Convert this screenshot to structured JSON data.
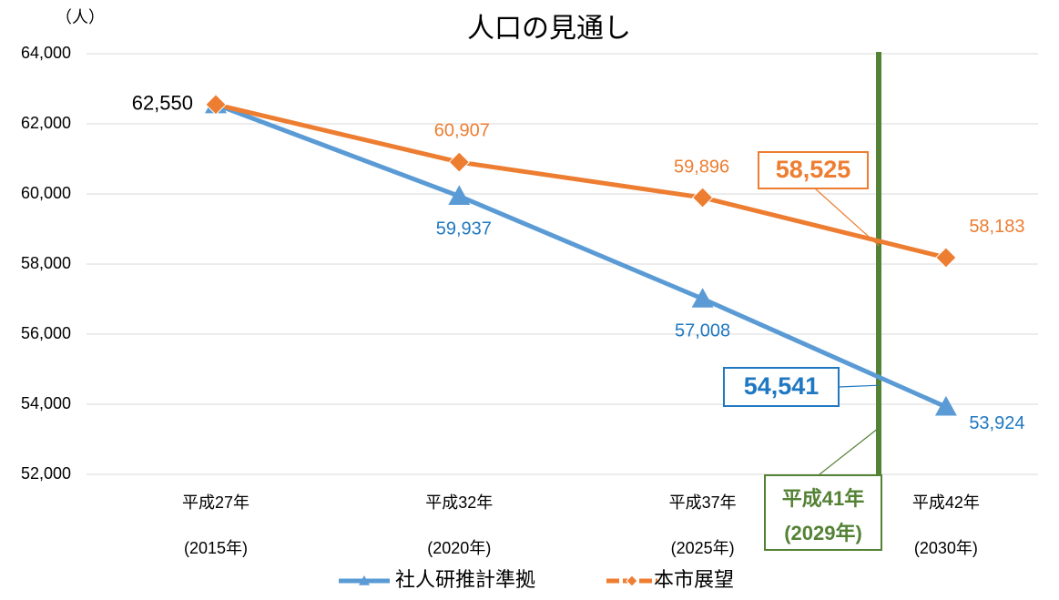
{
  "chart_data": {
    "type": "line",
    "title": "人口の見通し",
    "y_label": "（人）",
    "categories": [
      [
        "平成27年",
        "(2015年)"
      ],
      [
        "平成32年",
        "(2020年)"
      ],
      [
        "平成37年",
        "(2025年)"
      ],
      [
        "平成42年",
        "(2030年)"
      ]
    ],
    "series": [
      {
        "name": "社人研推計準拠",
        "color": "#5b9bd5",
        "marker": "triangle",
        "values": [
          62550,
          59937,
          57008,
          53924
        ],
        "value_labels": [
          "62,550",
          "59,937",
          "57,008",
          "53,924"
        ]
      },
      {
        "name": "本市展望",
        "color": "#ed7d31",
        "marker": "diamond",
        "values": [
          62550,
          60907,
          59896,
          58183
        ],
        "value_labels": [
          null,
          "60,907",
          "59,896",
          "58,183"
        ]
      }
    ],
    "ylim": [
      52000,
      64000
    ],
    "yticks": [
      {
        "value": 52000,
        "label": "52,000"
      },
      {
        "value": 54000,
        "label": "54,000"
      },
      {
        "value": 56000,
        "label": "56,000"
      },
      {
        "value": 58000,
        "label": "58,000"
      },
      {
        "value": 60000,
        "label": "60,000"
      },
      {
        "value": 62000,
        "label": "62,000"
      },
      {
        "value": 64000,
        "label": "64,000"
      }
    ],
    "grid": true,
    "legend": "bottom",
    "annotations": [
      {
        "label": "58,525",
        "value": 58525,
        "color": "#ed7d31"
      },
      {
        "label": "54,541",
        "value": 54541,
        "color": "#1f78c1"
      },
      {
        "label": "平成41年",
        "sublabel": "(2029年)",
        "color": "#548235"
      }
    ]
  }
}
